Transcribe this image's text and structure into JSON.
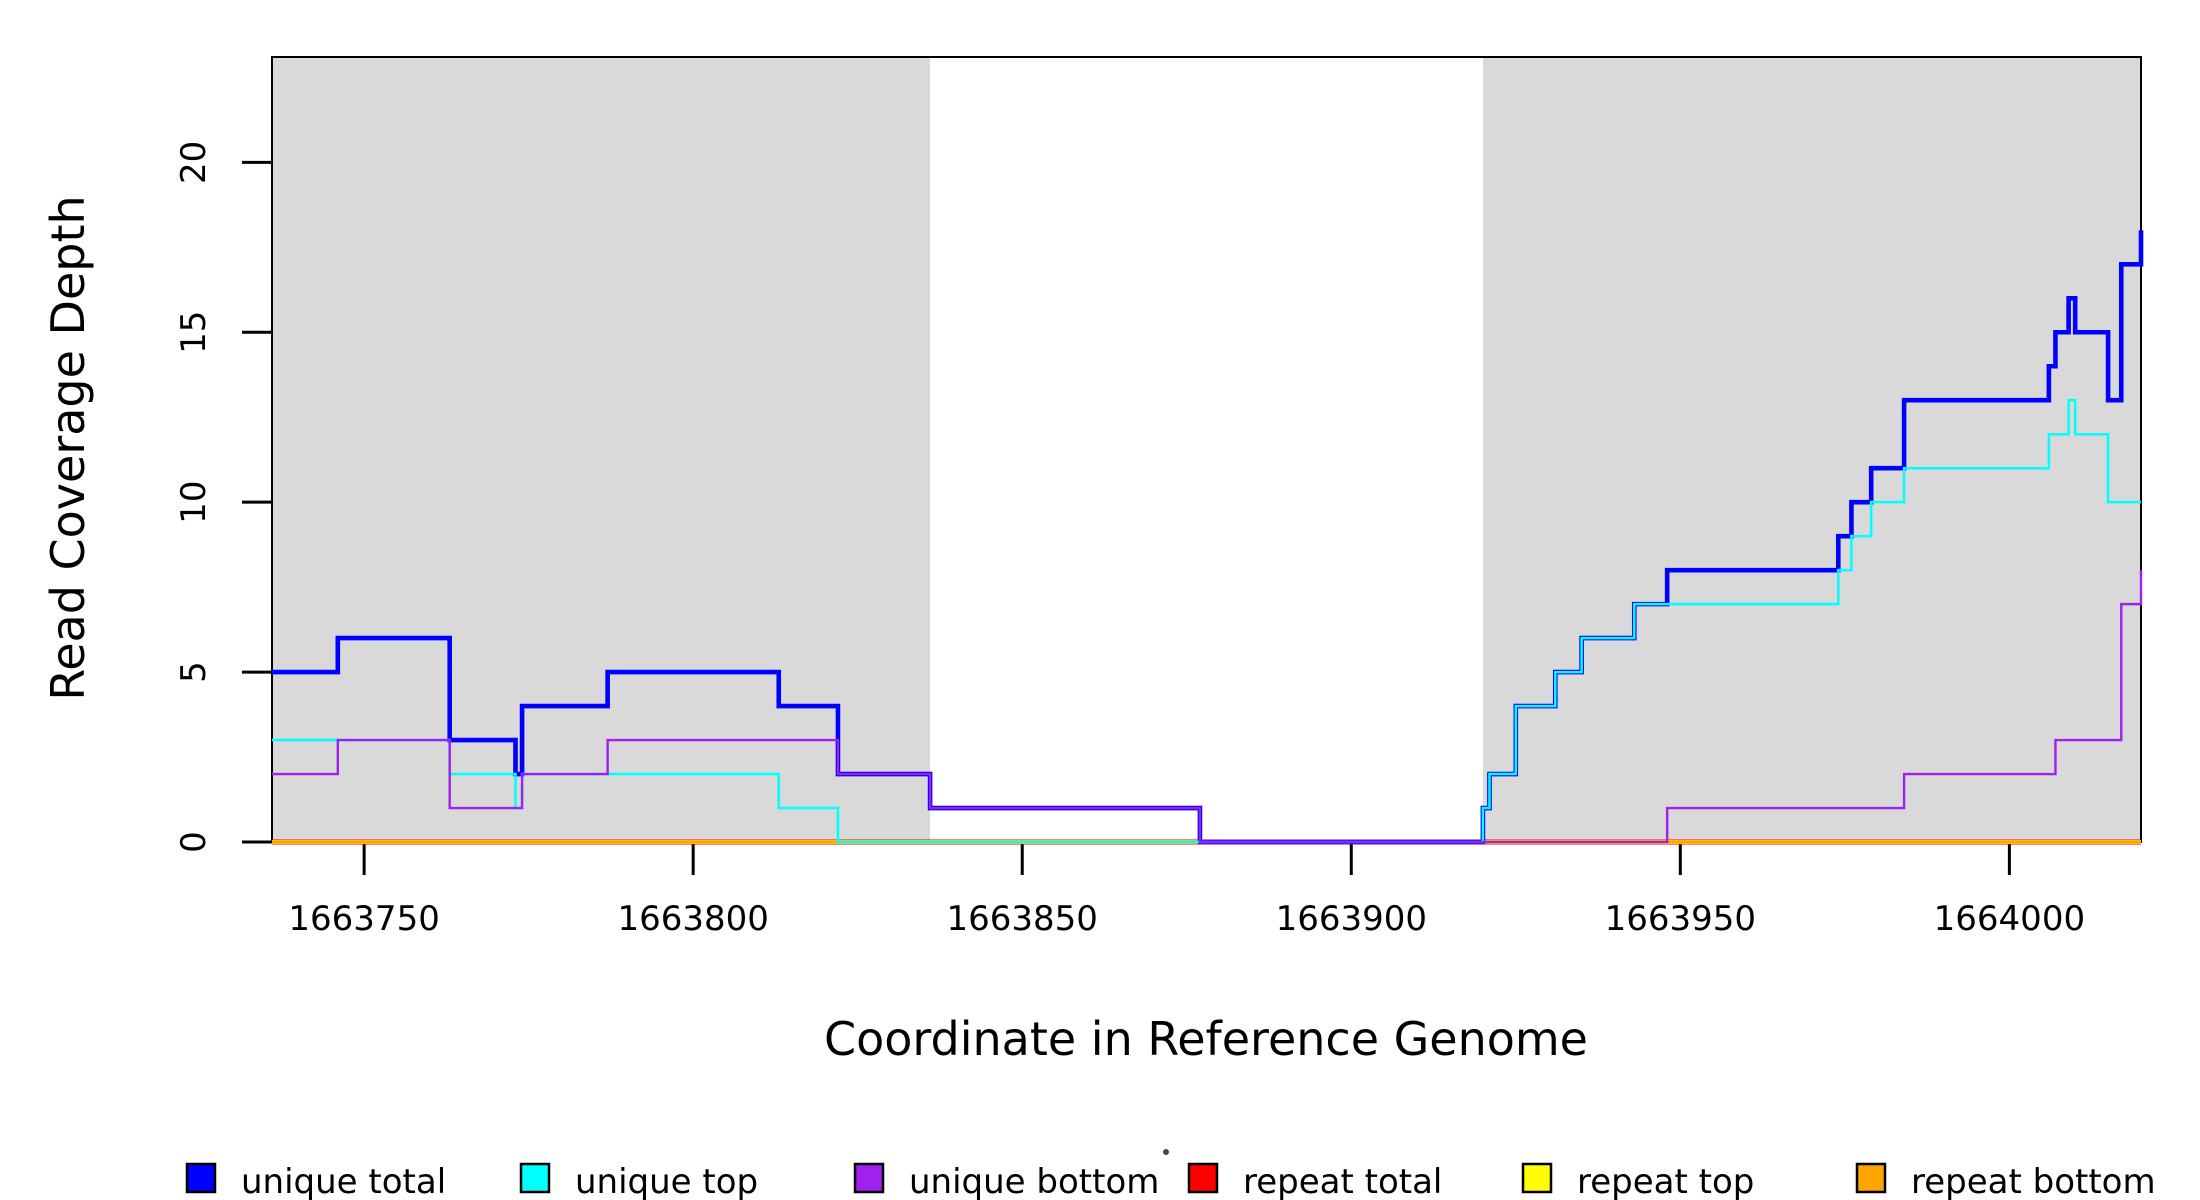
{
  "chart_data": {
    "type": "line",
    "subtype": "step-after",
    "title": "",
    "xlabel": "Coordinate in Reference Genome",
    "ylabel": "Read Coverage Depth",
    "xlim": [
      1663736,
      1664020
    ],
    "ylim": [
      0,
      23.1
    ],
    "x_ticks": [
      1663750,
      1663800,
      1663850,
      1663900,
      1663950,
      1664000
    ],
    "x_tick_labels": [
      "1663750",
      "1663800",
      "1663850",
      "1663900",
      "1663950",
      "1664000"
    ],
    "y_ticks": [
      0,
      5,
      10,
      15,
      20
    ],
    "y_tick_labels": [
      "0",
      "5",
      "10",
      "15",
      "20"
    ],
    "grid": false,
    "panel_background": "#ffffff",
    "shaded_regions": [
      {
        "x0": 1663736,
        "x1": 1663836,
        "color": "#d9d9d9"
      },
      {
        "x0": 1663920,
        "x1": 1664020,
        "color": "#d9d9d9"
      }
    ],
    "border_color": "#000000",
    "series": [
      {
        "name": "repeat total",
        "color": "#ff0000",
        "width": 5,
        "steps": [
          [
            1663736,
            0
          ]
        ]
      },
      {
        "name": "repeat top",
        "color": "#ffff00",
        "width": 3.8,
        "steps": [
          [
            1663736,
            0
          ]
        ]
      },
      {
        "name": "repeat bottom",
        "color": "#ffa500",
        "width": 2.8,
        "steps": [
          [
            1663736,
            0
          ]
        ]
      },
      {
        "name": "unique total",
        "color": "#0000ff",
        "width": 4.6,
        "steps": [
          [
            1663736,
            5
          ],
          [
            1663746,
            6
          ],
          [
            1663763,
            3
          ],
          [
            1663773,
            2
          ],
          [
            1663774,
            4
          ],
          [
            1663787,
            5
          ],
          [
            1663813,
            4
          ],
          [
            1663822,
            2
          ],
          [
            1663836,
            1
          ],
          [
            1663877,
            0
          ],
          [
            1663920,
            1
          ],
          [
            1663921,
            2
          ],
          [
            1663925,
            4
          ],
          [
            1663931,
            5
          ],
          [
            1663935,
            6
          ],
          [
            1663943,
            7
          ],
          [
            1663948,
            8
          ],
          [
            1663974,
            9
          ],
          [
            1663976,
            10
          ],
          [
            1663979,
            11
          ],
          [
            1663984,
            13
          ],
          [
            1664006,
            14
          ],
          [
            1664007,
            15
          ],
          [
            1664009,
            16
          ],
          [
            1664010,
            15
          ],
          [
            1664015,
            13
          ],
          [
            1664017,
            17
          ],
          [
            1664020,
            18
          ]
        ]
      },
      {
        "name": "unique top",
        "color": "#00ffff",
        "width": 2.5,
        "steps": [
          [
            1663736,
            3
          ],
          [
            1663763,
            2
          ],
          [
            1663773,
            1
          ],
          [
            1663774,
            2
          ],
          [
            1663813,
            1
          ],
          [
            1663822,
            0
          ],
          [
            1663920,
            1
          ],
          [
            1663921,
            2
          ],
          [
            1663925,
            4
          ],
          [
            1663931,
            5
          ],
          [
            1663935,
            6
          ],
          [
            1663943,
            7
          ],
          [
            1663974,
            8
          ],
          [
            1663976,
            9
          ],
          [
            1663979,
            10
          ],
          [
            1663984,
            11
          ],
          [
            1664006,
            12
          ],
          [
            1664009,
            13
          ],
          [
            1664010,
            12
          ],
          [
            1664015,
            10
          ]
        ]
      },
      {
        "name": "unique bottom",
        "color": "#a020f0",
        "width": 2.4,
        "steps": [
          [
            1663736,
            2
          ],
          [
            1663746,
            3
          ],
          [
            1663763,
            1
          ],
          [
            1663774,
            2
          ],
          [
            1663787,
            3
          ],
          [
            1663822,
            2
          ],
          [
            1663836,
            1
          ],
          [
            1663877,
            0
          ],
          [
            1663948,
            1
          ],
          [
            1663984,
            2
          ],
          [
            1664007,
            3
          ],
          [
            1664017,
            7
          ],
          [
            1664020,
            8
          ]
        ]
      }
    ],
    "legend": {
      "position": "bottom",
      "items": [
        {
          "label": "unique total",
          "color": "#0000ff"
        },
        {
          "label": "unique top",
          "color": "#00ffff"
        },
        {
          "label": "unique bottom",
          "color": "#a020f0"
        },
        {
          "label": "repeat total",
          "color": "#ff0000"
        },
        {
          "label": "repeat top",
          "color": "#ffff00"
        },
        {
          "label": "repeat bottom",
          "color": "#ffa500"
        }
      ]
    }
  }
}
